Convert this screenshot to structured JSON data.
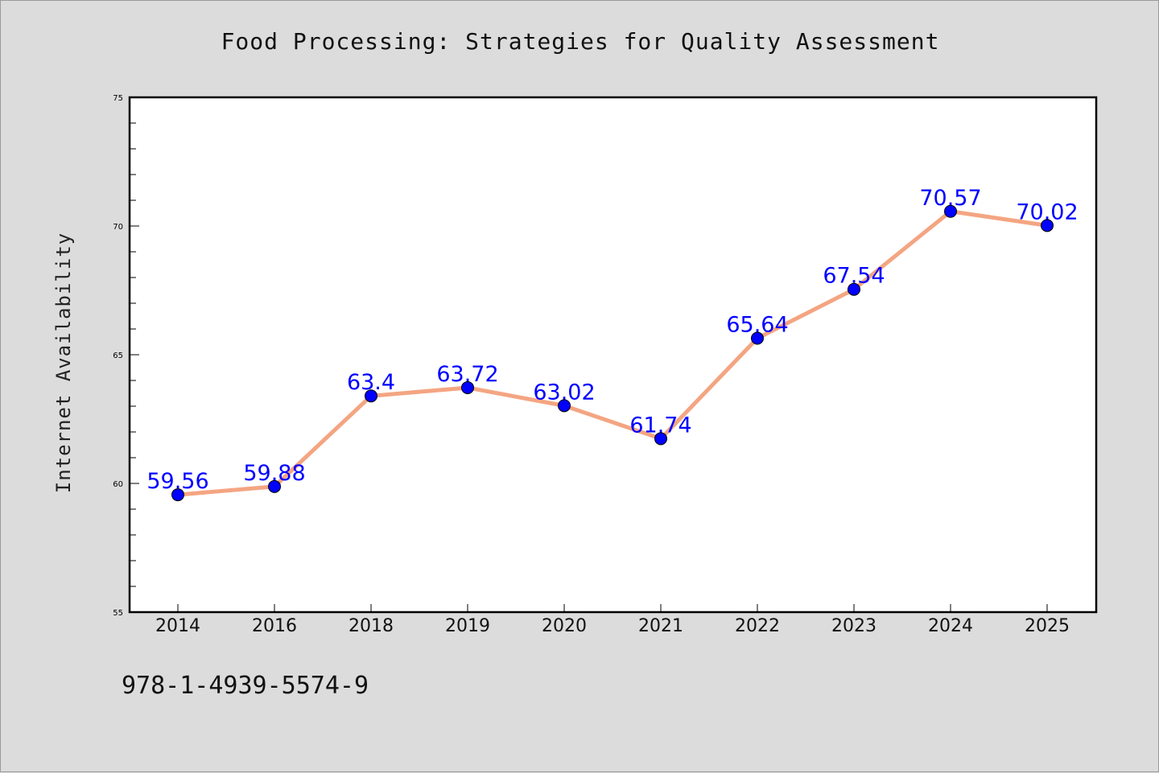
{
  "chart_data": {
    "type": "line",
    "title": "Food Processing: Strategies for Quality Assessment",
    "xlabel": "",
    "ylabel": "Internet Availability",
    "categories": [
      "2014",
      "2016",
      "2018",
      "2019",
      "2020",
      "2021",
      "2022",
      "2023",
      "2024",
      "2025"
    ],
    "series": [
      {
        "values": [
          59.56,
          59.88,
          63.4,
          63.72,
          63.02,
          61.74,
          65.64,
          67.54,
          70.57,
          70.02
        ],
        "labels": [
          "59.56",
          "59.88",
          "63.4",
          "63.72",
          "63.02",
          "61.74",
          "65.64",
          "67.54",
          "70.57",
          "70.02"
        ]
      }
    ],
    "ylim": [
      55,
      75
    ],
    "yticks": [
      55,
      60,
      65,
      70,
      75
    ],
    "ytick_labels": [
      "55",
      "60",
      "65",
      "70",
      "75"
    ],
    "grid": false,
    "colors": {
      "line": "#f4a582",
      "marker": "#0000ff",
      "data_label": "#0000ff",
      "plot_background": "#ffffff",
      "figure_background": "#dcdcdc"
    }
  },
  "footer": {
    "code": "978-1-4939-5574-9"
  }
}
